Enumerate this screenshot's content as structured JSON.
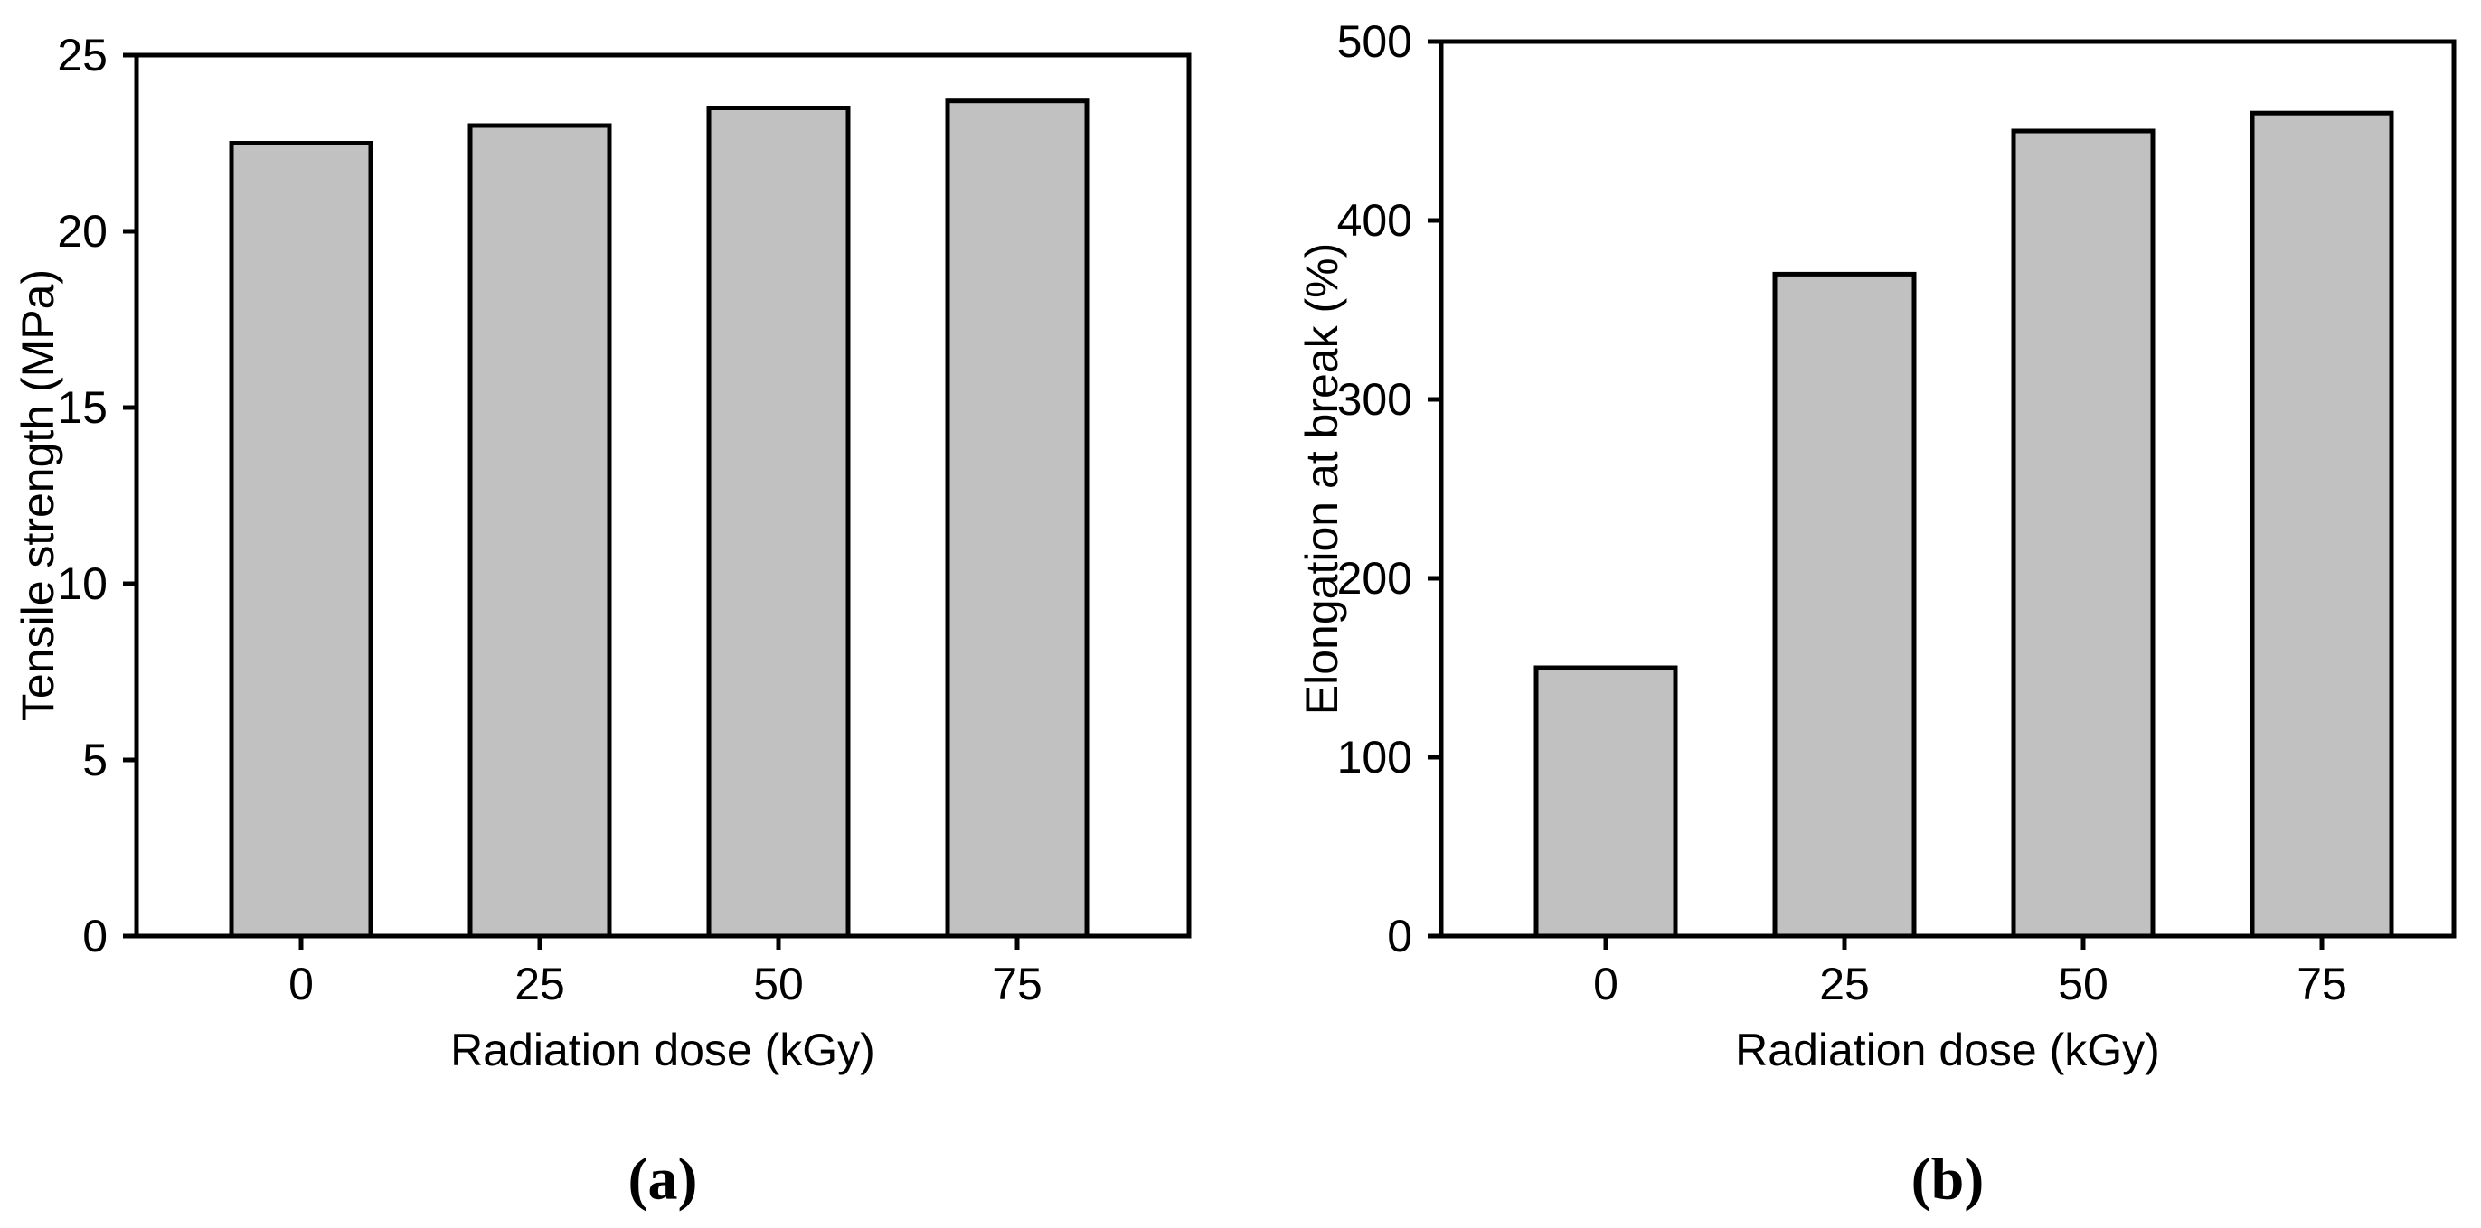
{
  "figure": {
    "background_color": "#ffffff",
    "text_color": "#000000"
  },
  "chart_data": [
    {
      "type": "bar",
      "panel_label": "(a)",
      "title": "",
      "xlabel": "Radiation dose (kGy)",
      "ylabel": "Tensile strength (MPa)",
      "categories": [
        "0",
        "25",
        "50",
        "75"
      ],
      "values": [
        22.5,
        23.0,
        23.5,
        23.7
      ],
      "ylim": [
        0,
        25
      ],
      "yticks": [
        0,
        5,
        10,
        15,
        20,
        25
      ],
      "grid": false,
      "legend": "none",
      "bar_color": "#c1c1c1",
      "bar_border_color": "#000000"
    },
    {
      "type": "bar",
      "panel_label": "(b)",
      "title": "",
      "xlabel": "Radiation dose (kGy)",
      "ylabel": "Elongation at break (%)",
      "categories": [
        "0",
        "25",
        "50",
        "75"
      ],
      "values": [
        150,
        370,
        450,
        460
      ],
      "ylim": [
        0,
        500
      ],
      "yticks": [
        0,
        100,
        200,
        300,
        400,
        500
      ],
      "grid": false,
      "legend": "none",
      "bar_color": "#c1c1c1",
      "bar_border_color": "#000000"
    }
  ]
}
